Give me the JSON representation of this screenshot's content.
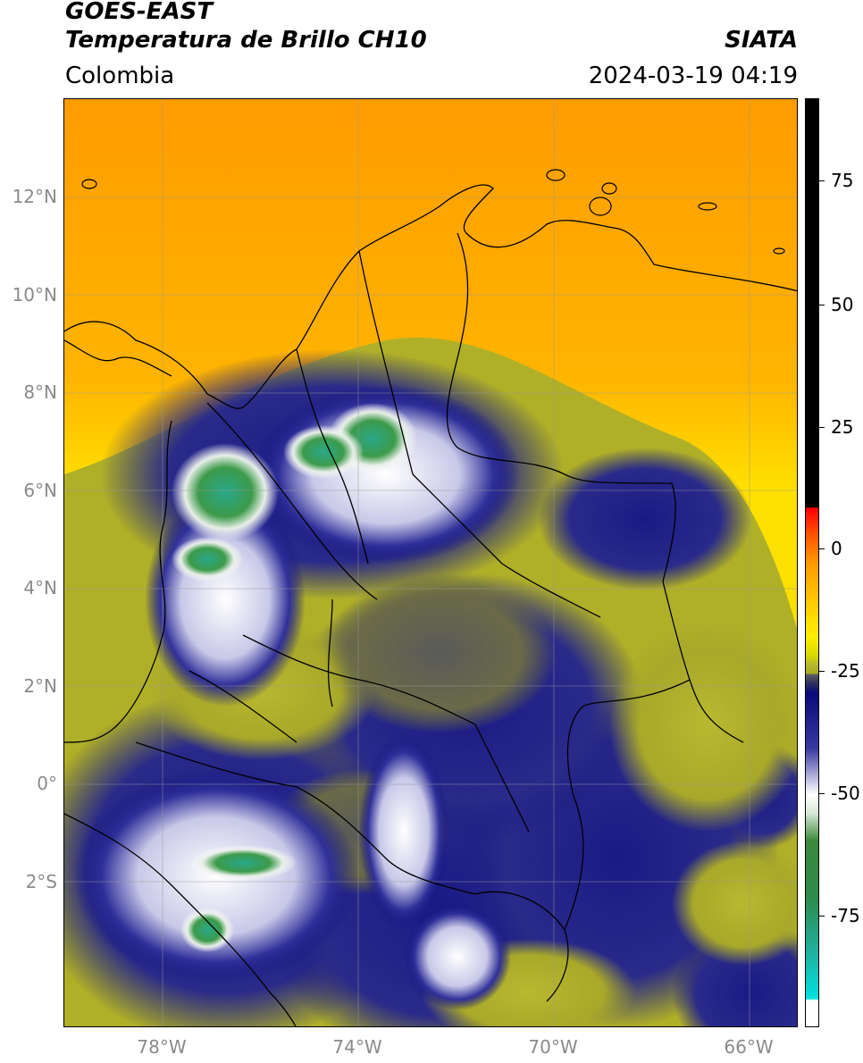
{
  "header": {
    "satellite": "GOES-EAST",
    "product": "Temperatura de Brillo CH10",
    "region": "Colombia",
    "source": "SIATA",
    "datetime": "2024-03-19 04:19"
  },
  "map": {
    "lat_labels": [
      "12°N",
      "10°N",
      "8°N",
      "6°N",
      "4°N",
      "2°N",
      "0°",
      "2°S"
    ],
    "lat_values": [
      12,
      10,
      8,
      6,
      4,
      2,
      0,
      -2
    ],
    "lon_labels": [
      "78°W",
      "74°W",
      "70°W",
      "66°W"
    ],
    "lon_values": [
      -78,
      -74,
      -70,
      -66
    ],
    "lon_range": [
      -80,
      -65
    ],
    "lat_range": [
      -5,
      14
    ],
    "gridlines": true
  },
  "colorbar": {
    "tick_labels": [
      "75",
      "50",
      "25",
      "0",
      "-25",
      "-50",
      "-75"
    ],
    "tick_values": [
      75,
      50,
      25,
      0,
      -25,
      -50,
      -75
    ],
    "range": [
      -95,
      90
    ],
    "colors": {
      "warm_black": "#000000",
      "red": "#ff0000",
      "orange": "#ff9900",
      "yellow": "#ffee00",
      "olive": "#a8a820",
      "navy": "#0a0a7a",
      "white": "#ffffff",
      "green": "#2e8b2e",
      "teal": "#20c0a0",
      "cyan": "#00e0e0"
    }
  }
}
